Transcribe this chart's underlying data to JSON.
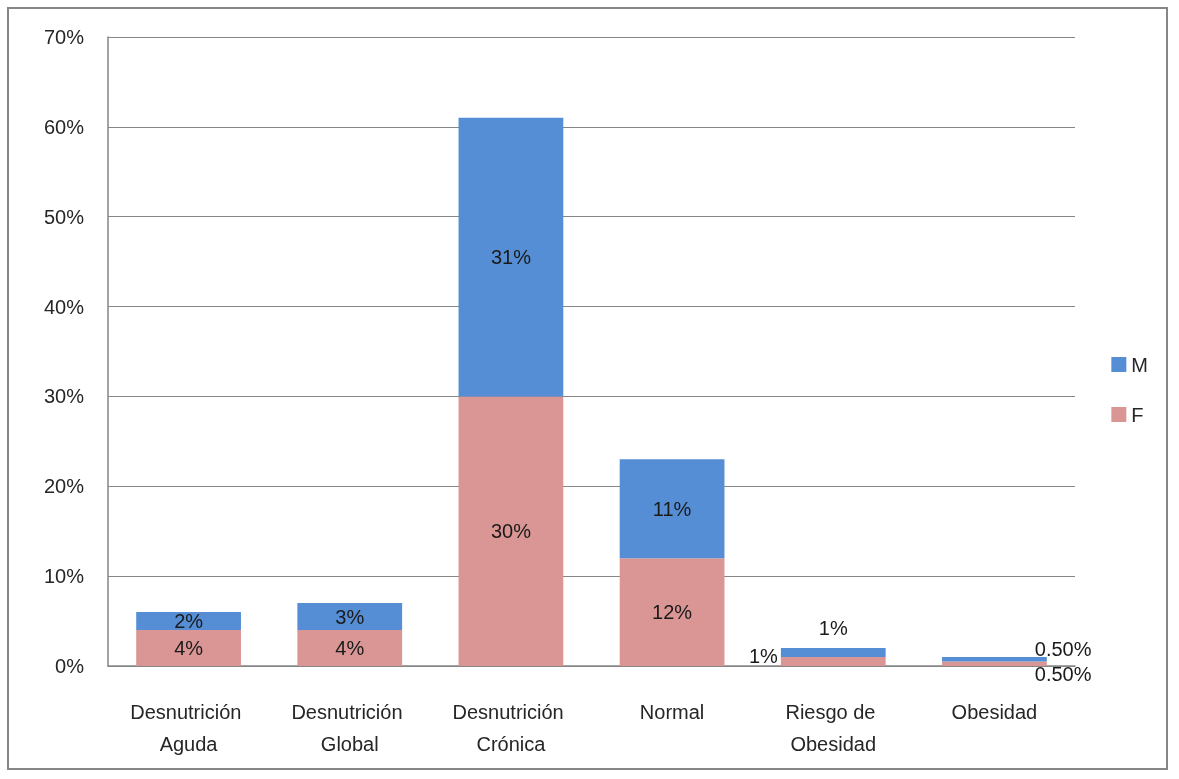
{
  "chart_data": {
    "type": "bar",
    "stacked": true,
    "categories": [
      "Desnutrición Aguda",
      "Desnutrición Global",
      "Desnutrición Crónica",
      "Normal",
      "Riesgo de Obesidad",
      "Obesidad"
    ],
    "series": [
      {
        "name": "F",
        "color": "#d99694",
        "values": [
          4,
          4,
          30,
          12,
          1,
          0.5
        ],
        "value_labels": [
          "4%",
          "4%",
          "30%",
          "12%",
          "1%",
          "0.50%"
        ]
      },
      {
        "name": "M",
        "color": "#558ed5",
        "values": [
          2,
          3,
          31,
          11,
          1,
          0.5
        ],
        "value_labels": [
          "2%",
          "3%",
          "31%",
          "11%",
          "1%",
          "0.50%"
        ]
      }
    ],
    "ylim": [
      0,
      70
    ],
    "yticks": [
      {
        "value": 0,
        "label": "0%"
      },
      {
        "value": 10,
        "label": "10%"
      },
      {
        "value": 20,
        "label": "20%"
      },
      {
        "value": 30,
        "label": "30%"
      },
      {
        "value": 40,
        "label": "40%"
      },
      {
        "value": 50,
        "label": "50%"
      },
      {
        "value": 60,
        "label": "60%"
      },
      {
        "value": 70,
        "label": "70%"
      }
    ],
    "grid": "y",
    "legend": "right"
  }
}
